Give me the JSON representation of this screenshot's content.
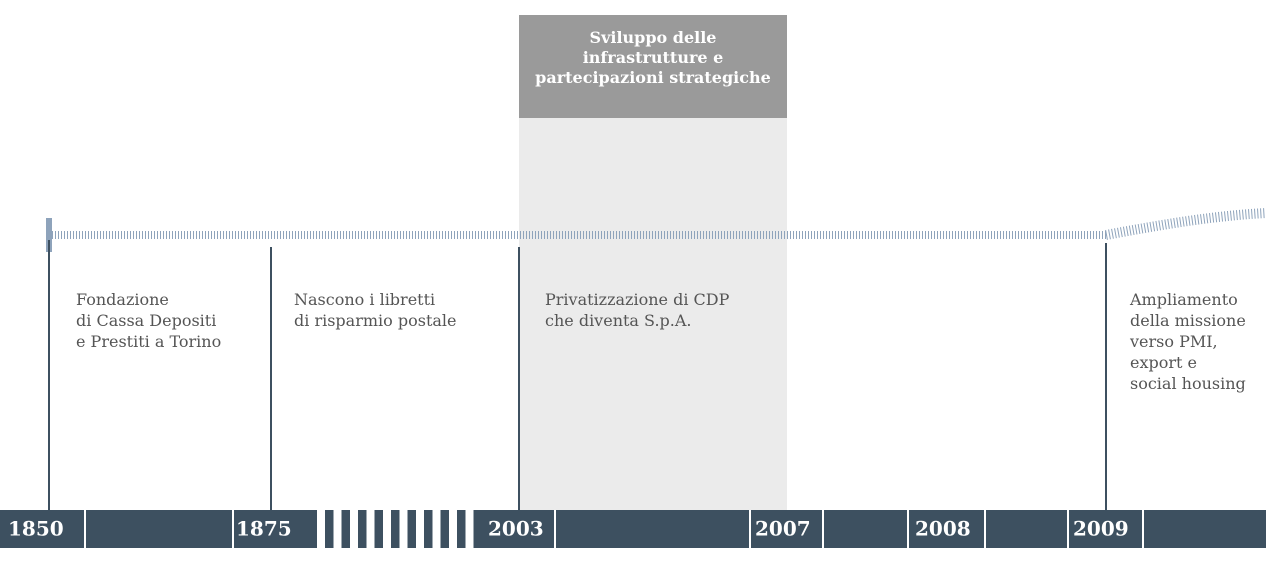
{
  "period": {
    "title_lines": [
      "Sviluppo delle",
      "infrastrutture e",
      "partecipazioni strategiche"
    ]
  },
  "events": [
    {
      "lines": [
        "Fondazione",
        "di Cassa Depositi",
        "e Prestiti a Torino"
      ]
    },
    {
      "lines": [
        "Nascono i libretti",
        "di risparmio postale"
      ]
    },
    {
      "lines": [
        "Privatizzazione di CDP",
        "che diventa S.p.A."
      ]
    },
    {
      "lines": [
        "Ampliamento",
        "della missione",
        "verso PMI,",
        "export e",
        "social housing"
      ]
    }
  ],
  "axis_years": [
    "1850",
    "1875",
    "2003",
    "2007",
    "2008",
    "2009"
  ]
}
